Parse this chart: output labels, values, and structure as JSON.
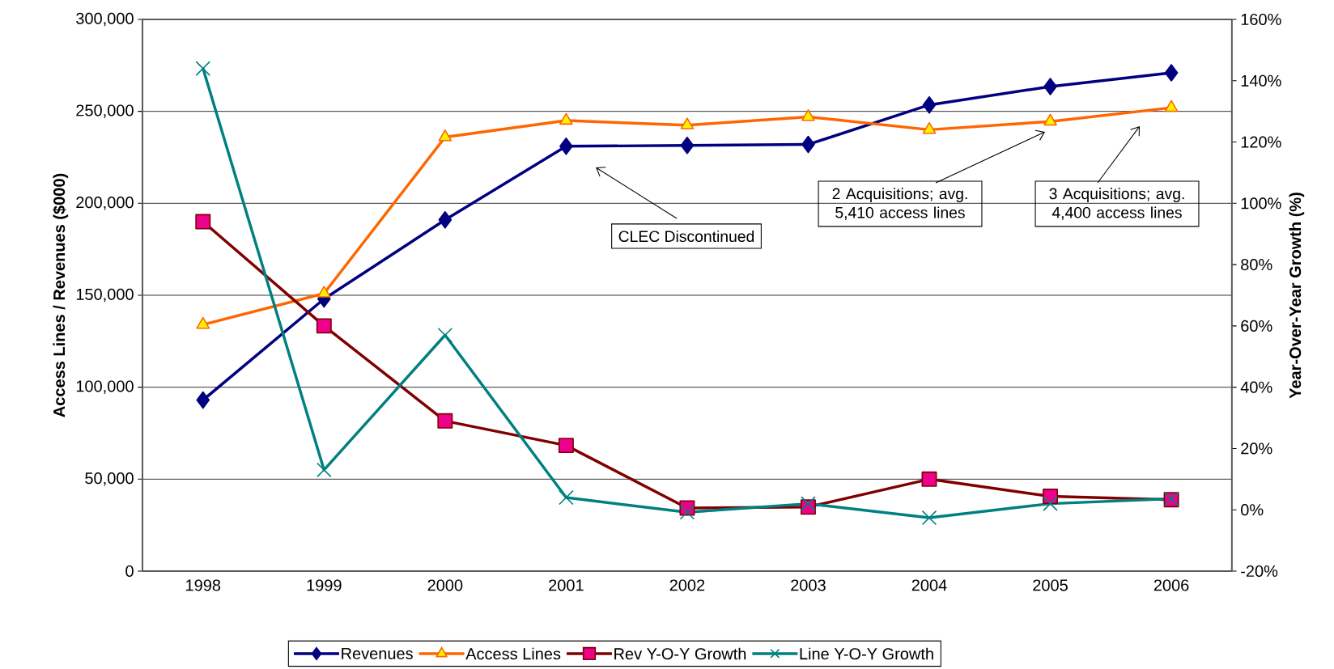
{
  "chart_data": {
    "type": "line",
    "xlabel": null,
    "ylabel": "Access Lines / Revenues ($000)",
    "y2label": "Year-Over-Year Growth (%)",
    "categories": [
      "1998",
      "1999",
      "2000",
      "2001",
      "2002",
      "2003",
      "2004",
      "2005",
      "2006"
    ],
    "series": [
      {
        "name": "Revenues",
        "color": "#000080",
        "marker": "diamond",
        "values": [
          93000,
          148000,
          191000,
          231000,
          231500,
          232000,
          253500,
          263500,
          271000
        ]
      },
      {
        "name": "Access Lines",
        "color": "#ff6600",
        "marker": "triangle",
        "values": [
          134000,
          151000,
          236000,
          245000,
          242500,
          247000,
          240000,
          244500,
          252000
        ]
      },
      {
        "name": "Rev Y-O-Y Growth",
        "color": "#800000",
        "marker": "square",
        "axis": "y2",
        "values": [
          94,
          60,
          29,
          21,
          0.6,
          0.9,
          10,
          4.4,
          3.3
        ]
      },
      {
        "name": "Line Y-O-Y Growth",
        "color": "#008080",
        "marker": "cross",
        "axis": "y2",
        "values": [
          144,
          13,
          57,
          4,
          -0.8,
          2,
          -2.6,
          2,
          3.6
        ]
      }
    ],
    "ylim": [
      0,
      300000
    ],
    "yticks": [
      0,
      {
        "value": 50000,
        "label": "50,000"
      },
      {
        "value": 100000,
        "label": "100,000"
      },
      {
        "value": 150000,
        "label": "150,000"
      },
      {
        "value": 200000,
        "label": "200,000"
      },
      {
        "value": 250000,
        "label": "250,000"
      },
      {
        "value": 300000,
        "label": "300,000"
      }
    ],
    "y2lim": [
      -20,
      160
    ],
    "y2ticks": [
      {
        "value": -20,
        "label": "-20%"
      },
      {
        "value": 0,
        "label": "0%"
      },
      {
        "value": 20,
        "label": "20%"
      },
      {
        "value": 40,
        "label": "40%"
      },
      {
        "value": 60,
        "label": "60%"
      },
      {
        "value": 80,
        "label": "80%"
      },
      {
        "value": 100,
        "label": "100%"
      },
      {
        "value": 120,
        "label": "120%"
      },
      {
        "value": 140,
        "label": "140%"
      },
      {
        "value": 160,
        "label": "160%"
      }
    ],
    "annotations": [
      "CLEC Discontinued",
      "2 Acquisitions; avg. 5,410 access lines",
      "3 Acquisitions; avg. 4,400 access lines"
    ],
    "grid": "y",
    "legend": "bottom",
    "line_style": "solid"
  }
}
